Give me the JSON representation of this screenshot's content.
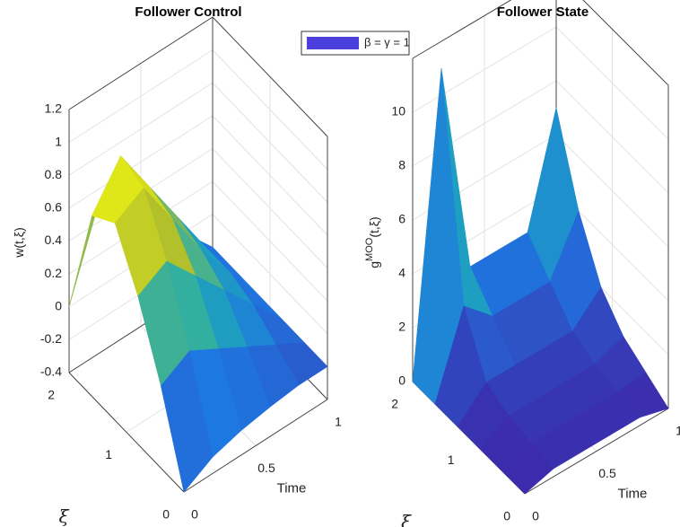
{
  "chart_data": [
    {
      "type": "surface",
      "title": "Follower Control",
      "xlabel": "Time",
      "ylabel": "ξ",
      "zlabel_parts": [
        "w(t,ξ)"
      ],
      "x": [
        0,
        0.2,
        0.4,
        0.6,
        0.8,
        1
      ],
      "y": [
        0,
        0.4,
        0.8,
        1.2,
        1.6,
        2
      ],
      "z": [
        [
          -0.4,
          -0.3,
          -0.25,
          -0.22,
          -0.2,
          -0.2
        ],
        [
          0.1,
          0.2,
          0.1,
          0,
          -0.1,
          -0.2
        ],
        [
          0.5,
          0.6,
          0.4,
          0.2,
          0,
          -0.2
        ],
        [
          0.8,
          0.9,
          0.6,
          0.3,
          0.05,
          -0.2
        ],
        [
          0.7,
          0.95,
          0.65,
          0.35,
          0.05,
          -0.2
        ],
        [
          0,
          0.5,
          0.4,
          0.2,
          0,
          -0.2
        ]
      ],
      "xlim": [
        0,
        1
      ],
      "ylim": [
        0,
        2
      ],
      "zlim": [
        -0.4,
        1.2
      ],
      "xticks": [
        0,
        0.5,
        1
      ],
      "yticks": [
        0,
        1,
        2
      ],
      "zticks": [
        -0.4,
        -0.2,
        0,
        0.2,
        0.4,
        0.6,
        0.8,
        1,
        1.2
      ],
      "legend": {
        "label": "β = γ = 1",
        "color": "#4b3fdc"
      }
    },
    {
      "type": "surface",
      "title": "Follower State",
      "xlabel": "Time",
      "ylabel": "ξ",
      "zlabel_parts": [
        "g",
        "MOO",
        "(t,ξ)"
      ],
      "x": [
        0,
        0.2,
        0.4,
        0.6,
        0.8,
        1
      ],
      "y": [
        0,
        0.4,
        0.8,
        1.2,
        1.6,
        2
      ],
      "z": [
        [
          0,
          0.3,
          0.3,
          0.3,
          0.3,
          0
        ],
        [
          0,
          0.4,
          0.4,
          0.4,
          0.4,
          0.5
        ],
        [
          0,
          0.6,
          0.6,
          0.6,
          0.6,
          1
        ],
        [
          0,
          1,
          1,
          1,
          1,
          2
        ],
        [
          0,
          3,
          2,
          2,
          2,
          4
        ],
        [
          0,
          11,
          3,
          3,
          3,
          7
        ]
      ],
      "xlim": [
        0,
        1
      ],
      "ylim": [
        0,
        2
      ],
      "zlim": [
        0,
        12
      ],
      "xticks": [
        0,
        0.5,
        1
      ],
      "yticks": [
        0,
        1,
        2
      ],
      "zticks": [
        0,
        2,
        4,
        6,
        8,
        10
      ]
    }
  ]
}
